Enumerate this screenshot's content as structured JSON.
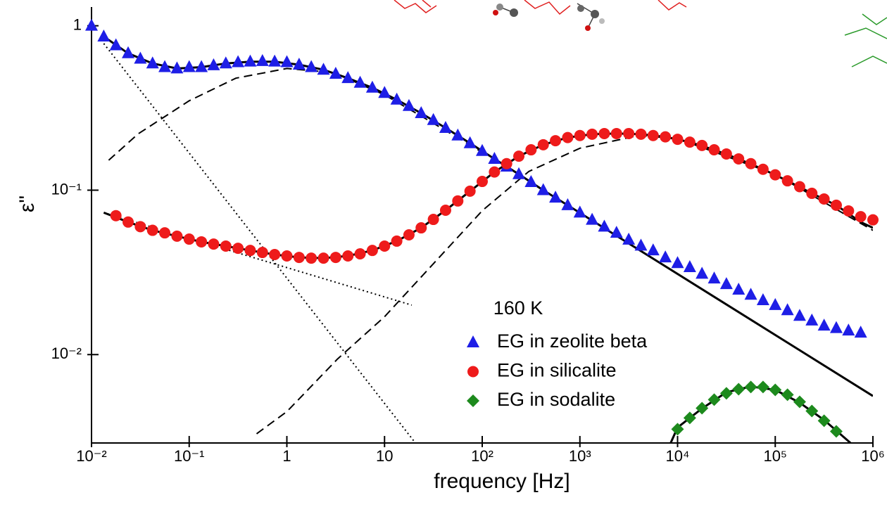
{
  "chart_data": {
    "type": "scatter",
    "x_label": "frequency [Hz]",
    "y_label": "ε\"",
    "xscale": "log",
    "yscale": "log",
    "xlim": [
      0.01,
      1000000
    ],
    "ylim": [
      0.0029,
      1.3
    ],
    "xticks": [
      {
        "value": 0.01,
        "label": "10⁻²"
      },
      {
        "value": 0.1,
        "label": "10⁻¹"
      },
      1,
      10,
      {
        "value": 100,
        "label": "10²"
      },
      {
        "value": 1000,
        "label": "10³"
      },
      {
        "value": 10000,
        "label": "10⁴"
      },
      {
        "value": 100000,
        "label": "10⁵"
      },
      {
        "value": 1000000,
        "label": "10⁶"
      }
    ],
    "yticks": [
      {
        "value": 0.01,
        "label": "10⁻²"
      },
      {
        "value": 0.1,
        "label": "10⁻¹"
      },
      1
    ],
    "legend": "lower center",
    "legend_title": "160 K",
    "series": [
      {
        "name": "EG in zeolite beta",
        "color": "#1e1ee6",
        "marker": "triangle",
        "x": [
          0.01,
          0.01334,
          0.01778,
          0.02371,
          0.03162,
          0.04217,
          0.05623,
          0.07499,
          0.1,
          0.1334,
          0.1778,
          0.2371,
          0.3162,
          0.4217,
          0.5623,
          0.7499,
          1,
          1.334,
          1.778,
          2.371,
          3.162,
          4.217,
          5.623,
          7.499,
          10,
          13.34,
          17.78,
          23.71,
          31.62,
          42.17,
          56.23,
          74.99,
          100,
          133.4,
          177.8,
          237.1,
          316.2,
          421.7,
          562.3,
          749.9,
          1000,
          1334,
          1778,
          2371,
          3162,
          4217,
          5623,
          7499,
          10000,
          13340,
          17780,
          23710,
          31620,
          42170,
          56230,
          74990,
          100000,
          133400,
          177800,
          237100,
          316200,
          421700,
          562300,
          749900
        ],
        "values": [
          1.0,
          0.86,
          0.76,
          0.68,
          0.63,
          0.59,
          0.56,
          0.55,
          0.56,
          0.56,
          0.575,
          0.59,
          0.6,
          0.605,
          0.61,
          0.605,
          0.6,
          0.58,
          0.56,
          0.54,
          0.51,
          0.48,
          0.45,
          0.42,
          0.39,
          0.355,
          0.325,
          0.294,
          0.267,
          0.239,
          0.215,
          0.193,
          0.173,
          0.155,
          0.139,
          0.125,
          0.112,
          0.1,
          0.09,
          0.081,
          0.073,
          0.066,
          0.06,
          0.055,
          0.05,
          0.046,
          0.043,
          0.039,
          0.036,
          0.034,
          0.031,
          0.029,
          0.0268,
          0.0248,
          0.0231,
          0.0214,
          0.02,
          0.0186,
          0.0172,
          0.0161,
          0.015,
          0.0145,
          0.014,
          0.0136
        ]
      },
      {
        "name": "EG in silicalite",
        "color": "#ee1b1b",
        "marker": "circle",
        "x": [
          0.01778,
          0.02371,
          0.03162,
          0.04217,
          0.05623,
          0.07499,
          0.1,
          0.1334,
          0.1778,
          0.2371,
          0.3162,
          0.4217,
          0.5623,
          0.7499,
          1,
          1.334,
          1.778,
          2.371,
          3.162,
          4.217,
          5.623,
          7.499,
          10,
          13.34,
          17.78,
          23.71,
          31.62,
          42.17,
          56.23,
          74.99,
          100,
          133.4,
          177.8,
          237.1,
          316.2,
          421.7,
          562.3,
          749.9,
          1000,
          1334,
          1778,
          2371,
          3162,
          4217,
          5623,
          7499,
          10000,
          13340,
          17780,
          23710,
          31620,
          42170,
          56230,
          74990,
          100000,
          133400,
          177800,
          237100,
          316200,
          421700,
          562300,
          749900,
          1000000
        ],
        "values": [
          0.07,
          0.064,
          0.06,
          0.057,
          0.055,
          0.0525,
          0.0504,
          0.0485,
          0.047,
          0.0457,
          0.0443,
          0.043,
          0.0418,
          0.0406,
          0.0398,
          0.039,
          0.0386,
          0.0386,
          0.039,
          0.0398,
          0.041,
          0.043,
          0.0457,
          0.049,
          0.0535,
          0.059,
          0.0664,
          0.0755,
          0.086,
          0.0986,
          0.113,
          0.129,
          0.145,
          0.161,
          0.176,
          0.189,
          0.2,
          0.209,
          0.215,
          0.219,
          0.221,
          0.221,
          0.221,
          0.219,
          0.215,
          0.211,
          0.204,
          0.196,
          0.187,
          0.176,
          0.166,
          0.155,
          0.145,
          0.134,
          0.124,
          0.114,
          0.105,
          0.0957,
          0.0884,
          0.081,
          0.0748,
          0.069,
          0.066
        ]
      },
      {
        "name": "EG in sodalite",
        "color": "#1d8a1d",
        "marker": "diamond",
        "x": [
          10000,
          13340,
          17780,
          23710,
          31620,
          42170,
          56230,
          74990,
          100000,
          133400,
          177800,
          237100,
          316200,
          421700
        ],
        "values": [
          0.00352,
          0.00412,
          0.00472,
          0.00532,
          0.00581,
          0.00616,
          0.00635,
          0.00635,
          0.0061,
          0.0057,
          0.00516,
          0.00454,
          0.00396,
          0.00341
        ]
      }
    ],
    "fits": [
      {
        "style": "solid",
        "color": "#000000",
        "x": [
          0.01334,
          0.02371,
          0.04217,
          0.07499,
          0.1334,
          0.2371,
          0.4217,
          0.7499,
          1.334,
          2.371,
          4.217,
          7.499,
          13.34,
          23.71,
          42.17,
          74.99,
          133.4,
          237.1,
          421.7,
          749.9,
          1000000
        ],
        "values": [
          0.86,
          0.68,
          0.59,
          0.55,
          0.56,
          0.59,
          0.605,
          0.605,
          0.58,
          0.54,
          0.48,
          0.42,
          0.355,
          0.294,
          0.239,
          0.193,
          0.155,
          0.125,
          0.1,
          0.081,
          0.0056
        ]
      },
      {
        "style": "solid",
        "color": "#000000",
        "x": [
          0.01334,
          0.02371,
          0.04217,
          0.07499,
          0.1334,
          0.2371,
          0.4217,
          0.7499,
          1.334,
          2.371,
          4.217,
          7.499,
          13.34,
          23.71,
          42.17,
          74.99,
          133.4,
          237.1,
          421.7,
          749.9,
          1334,
          2371,
          4217,
          7499,
          13340,
          23710,
          42170,
          74990,
          133400,
          237100,
          421700,
          749900,
          1000000
        ],
        "values": [
          0.073,
          0.064,
          0.057,
          0.0525,
          0.0485,
          0.0457,
          0.043,
          0.0406,
          0.039,
          0.0386,
          0.0398,
          0.043,
          0.049,
          0.059,
          0.0755,
          0.0986,
          0.129,
          0.161,
          0.189,
          0.209,
          0.219,
          0.221,
          0.219,
          0.211,
          0.196,
          0.176,
          0.155,
          0.134,
          0.114,
          0.0957,
          0.081,
          0.064,
          0.059
        ]
      },
      {
        "style": "solid",
        "color": "#000000",
        "x": [
          8500,
          10000,
          17780,
          31620,
          56230,
          100000,
          177800,
          316200,
          590000
        ],
        "values": [
          0.0029,
          0.0036,
          0.0047,
          0.0059,
          0.0064,
          0.0061,
          0.0051,
          0.004,
          0.0029
        ]
      },
      {
        "style": "dashed",
        "color": "#000000",
        "x": [
          0.015,
          0.03,
          0.1,
          0.3,
          1,
          3,
          10,
          30,
          100
        ],
        "values": [
          0.152,
          0.22,
          0.35,
          0.48,
          0.55,
          0.52,
          0.38,
          0.26,
          0.17
        ]
      },
      {
        "style": "dashed",
        "color": "#000000",
        "x": [
          0.49,
          1,
          3.3,
          10,
          100,
          300,
          1000,
          4000,
          10000,
          100000,
          1000000
        ],
        "values": [
          0.0033,
          0.0045,
          0.0094,
          0.017,
          0.075,
          0.13,
          0.18,
          0.215,
          0.206,
          0.125,
          0.057
        ]
      },
      {
        "style": "dotted",
        "color": "#000000",
        "x": [
          0.01334,
          20.7
        ],
        "values": [
          0.78,
          0.0029
        ]
      },
      {
        "style": "dotted",
        "color": "#000000",
        "x": [
          0.01334,
          19
        ],
        "values": [
          0.073,
          0.02
        ]
      }
    ]
  }
}
